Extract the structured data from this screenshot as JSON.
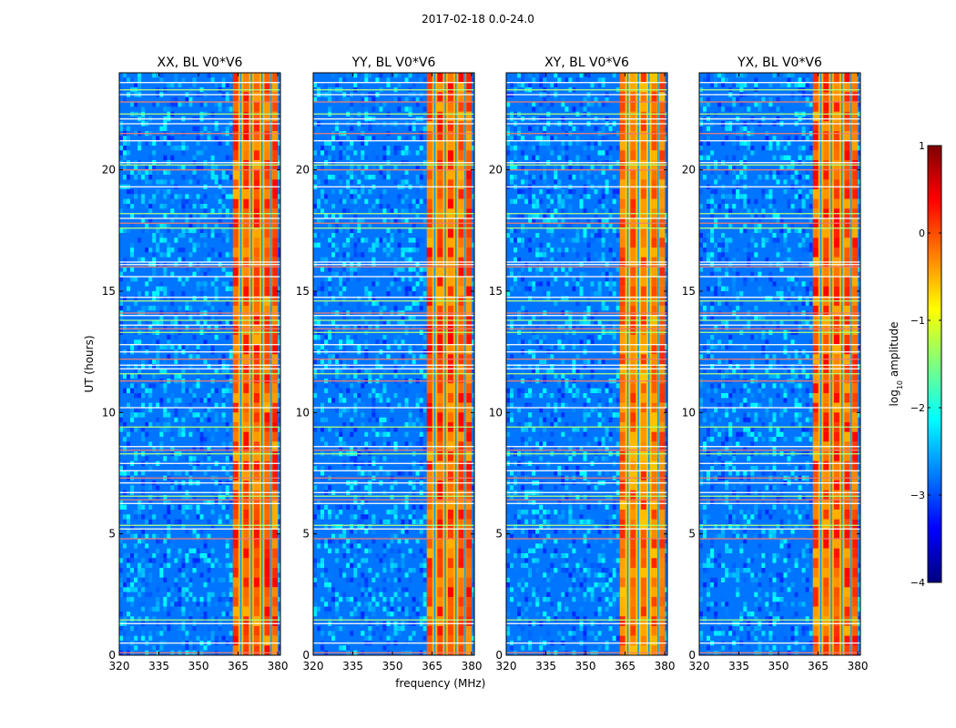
{
  "figure": {
    "suptitle": "2017-02-18 0.0-24.0"
  },
  "chart_data": [
    {
      "type": "heatmap",
      "title": "XX, BL V0*V6",
      "xlabel": "",
      "ylabel": "UT (hours)",
      "xlim": [
        320,
        381
      ],
      "ylim": [
        0,
        24
      ],
      "xticks": [
        320,
        335,
        350,
        365,
        380
      ],
      "yticks": [
        0,
        5,
        10,
        15,
        20
      ],
      "bright_channels_mhz": [
        364,
        368,
        372,
        376,
        379
      ],
      "band_mhz": [
        363.5,
        380
      ],
      "background_level": -2.8,
      "band_level": -0.5,
      "peak_level": 0.1
    },
    {
      "type": "heatmap",
      "title": "YY, BL V0*V6",
      "xlabel": "frequency (MHz)",
      "ylabel": "",
      "xlim": [
        320,
        381
      ],
      "ylim": [
        0,
        24
      ],
      "xticks": [
        320,
        335,
        350,
        365,
        380
      ],
      "yticks": [
        0,
        5,
        10,
        15,
        20
      ],
      "bright_channels_mhz": [
        364,
        368,
        372,
        376,
        379
      ],
      "band_mhz": [
        363.5,
        380
      ],
      "background_level": -2.8,
      "band_level": -0.5,
      "peak_level": 0.1
    },
    {
      "type": "heatmap",
      "title": "XY, BL V0*V6",
      "xlabel": "",
      "ylabel": "",
      "xlim": [
        320,
        381
      ],
      "ylim": [
        0,
        24
      ],
      "xticks": [
        320,
        335,
        350,
        365,
        380
      ],
      "yticks": [
        0,
        5,
        10,
        15,
        20
      ],
      "bright_channels_mhz": [
        364,
        368,
        372,
        376,
        379
      ],
      "band_mhz": [
        363.5,
        380
      ],
      "background_level": -2.8,
      "band_level": -0.6,
      "peak_level": -0.1
    },
    {
      "type": "heatmap",
      "title": "YX, BL V0*V6",
      "xlabel": "",
      "ylabel": "",
      "xlim": [
        320,
        381
      ],
      "ylim": [
        0,
        24
      ],
      "xticks": [
        320,
        335,
        350,
        365,
        380
      ],
      "yticks": [
        0,
        5,
        10,
        15,
        20
      ],
      "bright_channels_mhz": [
        364,
        368,
        372,
        376,
        379
      ],
      "band_mhz": [
        363.5,
        380
      ],
      "background_level": -2.8,
      "band_level": -0.5,
      "peak_level": 0.1
    }
  ],
  "shared": {
    "flagged_times_ut": [
      0.1,
      0.5,
      1.3,
      1.45,
      4.8,
      5.2,
      5.35,
      6.25,
      6.4,
      6.55,
      6.7,
      7.1,
      7.3,
      7.6,
      7.9,
      8.3,
      8.45,
      8.6,
      9.4,
      10.2,
      11.3,
      11.6,
      11.8,
      11.95,
      12.2,
      12.5,
      12.8,
      13.3,
      13.45,
      13.6,
      13.8,
      14.0,
      14.1,
      14.6,
      14.75,
      15.6,
      16.0,
      16.1,
      16.2,
      17.6,
      17.8,
      18.0,
      18.2,
      19.3,
      20.0,
      20.2,
      20.3,
      21.2,
      21.5,
      21.9,
      22.1,
      22.3,
      22.8,
      23.1,
      23.3,
      23.6
    ]
  },
  "colorbar": {
    "label_main": "log",
    "label_sub": "10",
    "label_tail": " amplitude",
    "range": [
      -4,
      1
    ],
    "ticks": [
      1,
      0,
      -1,
      -2,
      -3,
      -4
    ],
    "tick_labels": [
      "1",
      "0",
      "−1",
      "−2",
      "−3",
      "−4"
    ],
    "colors": [
      "#00007f",
      "#0000ff",
      "#007fff",
      "#00ffff",
      "#7fff7f",
      "#ffff00",
      "#ff7f00",
      "#ff0000",
      "#7f0000"
    ]
  }
}
